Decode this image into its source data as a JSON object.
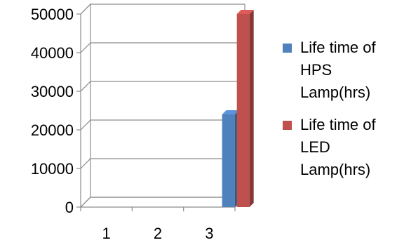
{
  "chart_data": {
    "type": "bar",
    "style": "3d-clustered-column",
    "categories": [
      "1",
      "2",
      "3"
    ],
    "series": [
      {
        "name": "Life time of HPS Lamp(hrs)",
        "values": [
          0,
          0,
          24000
        ],
        "color": "#4F81BD"
      },
      {
        "name": "Life time of LED Lamp(hrs)",
        "values": [
          0,
          0,
          50000
        ],
        "color": "#C0504D"
      }
    ],
    "yticks": [
      "0",
      "10000",
      "20000",
      "30000",
      "40000",
      "50000"
    ],
    "ylim": [
      0,
      50000
    ],
    "grid": true,
    "legend": "right"
  }
}
